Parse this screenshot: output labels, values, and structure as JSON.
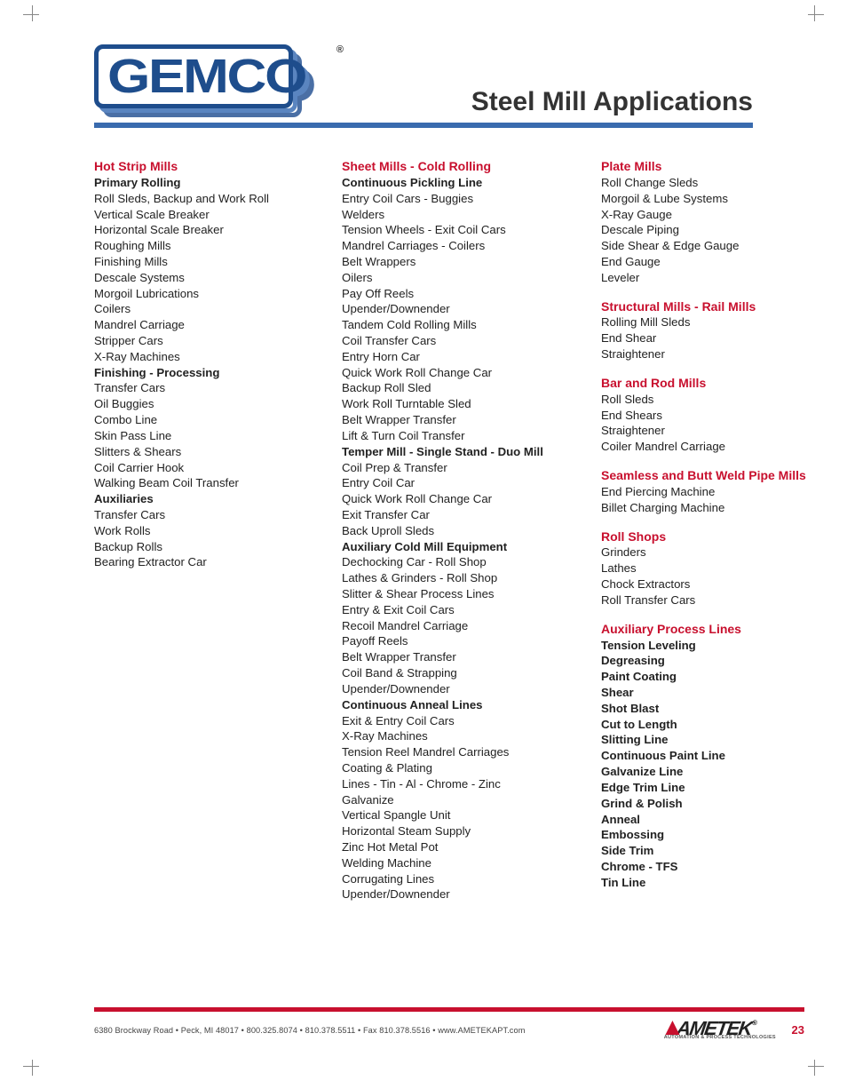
{
  "colors": {
    "accent_red": "#c8102e",
    "header_blue": "#1e4d8c",
    "hr_blue": "#3a6bae",
    "text": "#222222",
    "background": "#ffffff"
  },
  "logo_text": "GEMCO",
  "registered_mark": "®",
  "page_title": "Steel Mill Applications",
  "columns": [
    {
      "sections": [
        {
          "heading": "Hot Strip Mills",
          "groups": [
            {
              "sub": "Primary Rolling",
              "items": [
                "Roll Sleds, Backup and Work Roll",
                "Vertical Scale Breaker",
                "Horizontal Scale Breaker",
                "Roughing Mills",
                "Finishing Mills",
                "Descale Systems",
                "Morgoil Lubrications",
                "Coilers",
                "Mandrel Carriage",
                "Stripper Cars",
                "X-Ray Machines"
              ]
            },
            {
              "sub": "Finishing - Processing",
              "items": [
                "Transfer Cars",
                "Oil Buggies",
                "Combo Line",
                "Skin Pass Line",
                "Slitters & Shears",
                "Coil Carrier Hook",
                "Walking Beam Coil Transfer"
              ]
            },
            {
              "sub": "Auxiliaries",
              "items": [
                "Transfer Cars",
                "Work Rolls",
                "Backup Rolls",
                "Bearing Extractor Car"
              ]
            }
          ]
        }
      ]
    },
    {
      "sections": [
        {
          "heading": "Sheet Mills - Cold Rolling",
          "groups": [
            {
              "sub": "Continuous Pickling Line",
              "items": [
                "Entry Coil Cars - Buggies",
                "Welders",
                "Tension Wheels - Exit Coil Cars",
                "Mandrel Carriages - Coilers",
                "Belt Wrappers",
                "Oilers",
                "Pay Off Reels",
                "Upender/Downender",
                "Tandem Cold Rolling Mills",
                "Coil Transfer Cars",
                "Entry Horn Car",
                "Quick Work Roll Change Car",
                "Backup Roll Sled",
                "Work Roll Turntable Sled",
                "Belt Wrapper Transfer",
                "Lift & Turn Coil Transfer"
              ]
            },
            {
              "sub": "Temper Mill - Single Stand - Duo Mill",
              "items": [
                "Coil Prep & Transfer",
                "Entry Coil Car",
                "Quick Work Roll Change Car",
                "Exit Transfer Car",
                "Back Uproll Sleds"
              ]
            },
            {
              "sub": "Auxiliary Cold Mill Equipment",
              "items": [
                "Dechocking Car - Roll Shop",
                "Lathes & Grinders - Roll Shop",
                "Slitter & Shear Process Lines",
                "Entry & Exit Coil Cars",
                "Recoil Mandrel Carriage",
                "Payoff Reels",
                "Belt Wrapper Transfer",
                "Coil Band & Strapping",
                "Upender/Downender"
              ]
            },
            {
              "sub": "Continuous Anneal Lines",
              "items": [
                "Exit & Entry Coil Cars",
                "X-Ray Machines",
                "Tension Reel Mandrel Carriages",
                "Coating & Plating",
                "Lines - Tin - Al - Chrome - Zinc",
                "Galvanize",
                "Vertical Spangle Unit",
                "Horizontal Steam Supply",
                "Zinc Hot Metal Pot",
                "Welding Machine",
                "Corrugating Lines",
                "Upender/Downender"
              ]
            }
          ]
        }
      ]
    },
    {
      "sections": [
        {
          "heading": "Plate Mills",
          "groups": [
            {
              "sub": null,
              "items": [
                "Roll Change Sleds",
                "Morgoil & Lube Systems",
                "X-Ray Gauge",
                "Descale Piping",
                "Side Shear & Edge Gauge",
                "End Gauge",
                "Leveler"
              ]
            }
          ]
        },
        {
          "heading": "Structural Mills - Rail Mills",
          "groups": [
            {
              "sub": null,
              "items": [
                "Rolling Mill Sleds",
                "End Shear",
                "Straightener"
              ]
            }
          ]
        },
        {
          "heading": "Bar and Rod Mills",
          "groups": [
            {
              "sub": null,
              "items": [
                "Roll Sleds",
                "End Shears",
                "Straightener",
                "Coiler Mandrel Carriage"
              ]
            }
          ]
        },
        {
          "heading": "Seamless and Butt Weld Pipe Mills",
          "groups": [
            {
              "sub": null,
              "items": [
                "End Piercing Machine",
                "Billet Charging Machine"
              ]
            }
          ]
        },
        {
          "heading": "Roll Shops",
          "groups": [
            {
              "sub": null,
              "items": [
                "Grinders",
                "Lathes",
                "Chock Extractors",
                "Roll Transfer Cars"
              ]
            }
          ]
        },
        {
          "heading": "Auxiliary Process Lines",
          "bold_items": [
            "Tension Leveling",
            "Degreasing",
            "Paint Coating",
            "Shear",
            "Shot Blast",
            "Cut to Length",
            "Slitting Line",
            "Continuous Paint Line",
            "Galvanize Line",
            "Edge Trim Line",
            "Grind & Polish",
            "Anneal",
            "Embossing",
            "Side Trim",
            "Chrome - TFS",
            "Tin Line"
          ]
        }
      ]
    }
  ],
  "footer": {
    "address": "6380 Brockway Road  •  Peck, MI  48017  •  800.325.8074  •  810.378.5511  •  Fax 810.378.5516  •  www.AMETEKAPT.com",
    "brand": "AMETEK",
    "tagline": "AUTOMATION & PROCESS TECHNOLOGIES",
    "page_number": "23"
  }
}
